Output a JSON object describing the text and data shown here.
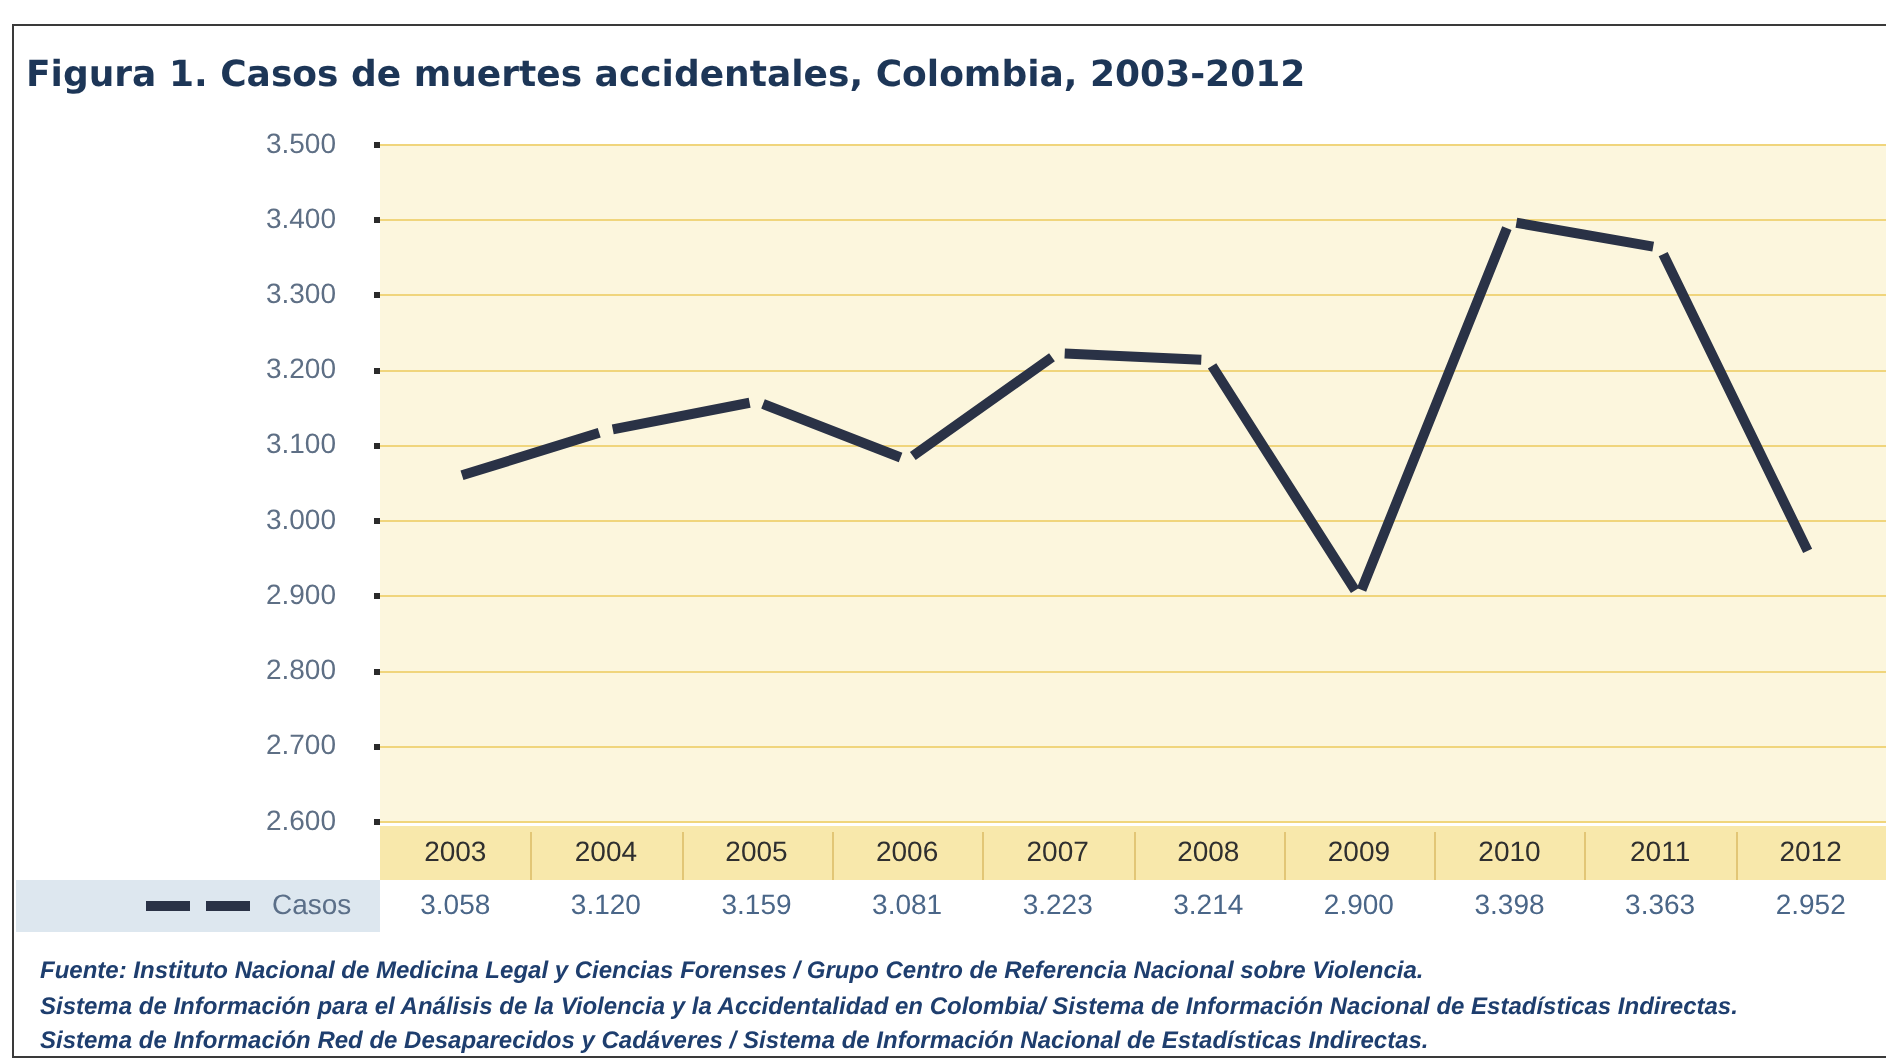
{
  "chart_data": {
    "type": "line",
    "title": "Figura 1. Casos de muertes accidentales, Colombia, 2003-2012",
    "categories": [
      "2003",
      "2004",
      "2005",
      "2006",
      "2007",
      "2008",
      "2009",
      "2010",
      "2011",
      "2012"
    ],
    "series": [
      {
        "name": "Casos",
        "color": "#2a3246",
        "values": [
          3058,
          3120,
          3159,
          3081,
          3223,
          3214,
          2900,
          3398,
          3363,
          2952
        ],
        "value_labels": [
          "3.058",
          "3.120",
          "3.159",
          "3.081",
          "3.223",
          "3.214",
          "2.900",
          "3.398",
          "3.363",
          "2.952"
        ]
      }
    ],
    "ylim": [
      2600,
      3500
    ],
    "yticks": [
      {
        "value": 2600,
        "label": "2.600"
      },
      {
        "value": 2700,
        "label": "2.700"
      },
      {
        "value": 2800,
        "label": "2.800"
      },
      {
        "value": 2900,
        "label": "2.900"
      },
      {
        "value": 3000,
        "label": "3.000"
      },
      {
        "value": 3100,
        "label": "3.100"
      },
      {
        "value": 3200,
        "label": "3.200"
      },
      {
        "value": 3300,
        "label": "3.300"
      },
      {
        "value": 3400,
        "label": "3.400"
      },
      {
        "value": 3500,
        "label": "3.500"
      }
    ],
    "grid": "y",
    "legend": "bottom left",
    "line_style": "dashed",
    "annotations": [
      "Fuente: Instituto Nacional de Medicina Legal y Ciencias Forenses / Grupo Centro de Referencia Nacional sobre Violencia.",
      "Sistema de Información para el Análisis de la Violencia y la Accidentalidad en Colombia/ Sistema de Información Nacional de Estadísticas Indirectas.",
      "Sistema de Información Red de Desaparecidos y Cadáveres / Sistema de Información Nacional de Estadísticas Indirectas."
    ]
  }
}
